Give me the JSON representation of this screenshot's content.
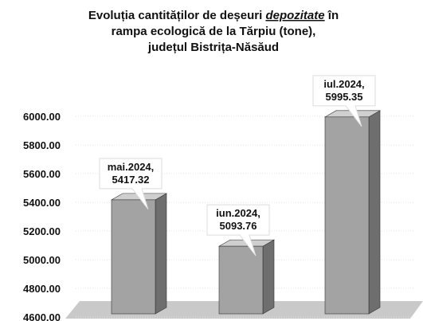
{
  "chart_data": {
    "type": "bar3d",
    "title_lines": [
      [
        "Evoluția cantităților de deșeuri ",
        "depozitate",
        " în"
      ],
      [
        "rampa ecologică de la Tărpiu (tone),"
      ],
      [
        "județul Bistrița-Năsăud"
      ]
    ],
    "categories": [
      "mai.2024,",
      "iun.2024,",
      "iul.2024,"
    ],
    "values": [
      5417.32,
      5093.76,
      5995.35
    ],
    "color": "#a3a3a3",
    "ylim": [
      4600,
      6100
    ],
    "yticks": [
      {
        "value": 4600,
        "label": "4600.00"
      },
      {
        "value": 4800,
        "label": "4800.00"
      },
      {
        "value": 5000,
        "label": "5000.00"
      },
      {
        "value": 5200,
        "label": "5200.00"
      },
      {
        "value": 5400,
        "label": "5400.00"
      },
      {
        "value": 5600,
        "label": "5600.00"
      },
      {
        "value": 5800,
        "label": "5800.00"
      },
      {
        "value": 6000,
        "label": "6000.00"
      }
    ]
  }
}
